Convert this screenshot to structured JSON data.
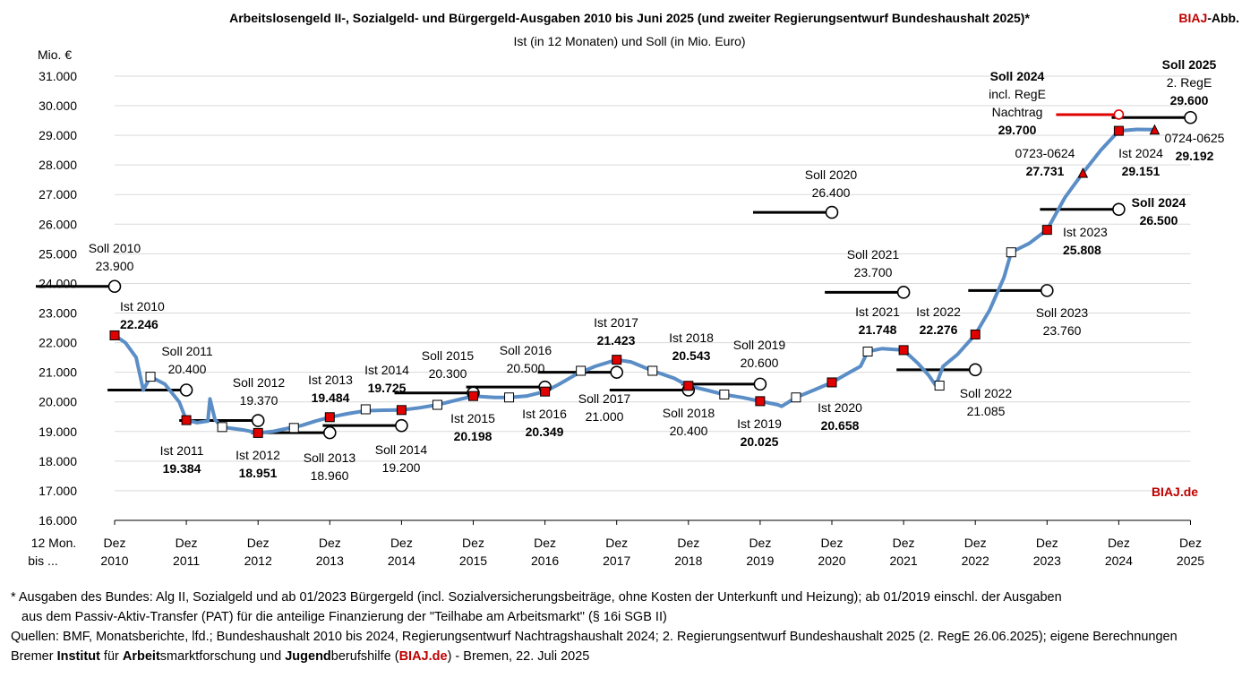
{
  "header": {
    "title": "Arbeitslosengeld II-, Sozialgeld- und Bürgergeld-Ausgaben 2010 bis Juni 2025 (und zweiter Regierungsentwurf Bundeshaushalt 2025)*",
    "subtitle": "Ist (in 12 Monaten) und Soll (in Mio. Euro)",
    "brand_red": "BIAJ",
    "brand_rest": "-Abb."
  },
  "chart_data": {
    "type": "line",
    "ylabel": "Mio. €",
    "xlabel_line1": "12 Mon.",
    "xlabel_line2": "bis ...",
    "ylim": [
      16000,
      31000
    ],
    "y_ticks": [
      "16.000",
      "17.000",
      "18.000",
      "19.000",
      "20.000",
      "21.000",
      "22.000",
      "23.000",
      "24.000",
      "25.000",
      "26.000",
      "27.000",
      "28.000",
      "29.000",
      "30.000",
      "31.000"
    ],
    "x_ticks": [
      {
        "top": "Dez",
        "bottom": "2010"
      },
      {
        "top": "Dez",
        "bottom": "2011"
      },
      {
        "top": "Dez",
        "bottom": "2012"
      },
      {
        "top": "Dez",
        "bottom": "2013"
      },
      {
        "top": "Dez",
        "bottom": "2014"
      },
      {
        "top": "Dez",
        "bottom": "2015"
      },
      {
        "top": "Dez",
        "bottom": "2016"
      },
      {
        "top": "Dez",
        "bottom": "2017"
      },
      {
        "top": "Dez",
        "bottom": "2018"
      },
      {
        "top": "Dez",
        "bottom": "2019"
      },
      {
        "top": "Dez",
        "bottom": "2020"
      },
      {
        "top": "Dez",
        "bottom": "2021"
      },
      {
        "top": "Dez",
        "bottom": "2022"
      },
      {
        "top": "Dez",
        "bottom": "2023"
      },
      {
        "top": "Dez",
        "bottom": "2024"
      },
      {
        "top": "Dez",
        "bottom": "2025"
      }
    ],
    "colors": {
      "ist_line": "#5b8ec6",
      "ist_marker": "#e00000",
      "soll": "#000000",
      "nachtrag": "#e00000",
      "brand": "#c00000"
    },
    "ist_series": [
      [
        2010.0,
        22246
      ],
      [
        2010.15,
        22000
      ],
      [
        2010.3,
        21500
      ],
      [
        2010.4,
        20400
      ],
      [
        2010.5,
        20850
      ],
      [
        2010.7,
        20600
      ],
      [
        2010.9,
        20000
      ],
      [
        2011.0,
        19384
      ],
      [
        2011.15,
        19300
      ],
      [
        2011.3,
        19350
      ],
      [
        2011.33,
        20100
      ],
      [
        2011.4,
        19400
      ],
      [
        2011.5,
        19150
      ],
      [
        2011.65,
        19100
      ],
      [
        2011.8,
        19050
      ],
      [
        2012.0,
        18951
      ],
      [
        2012.2,
        19000
      ],
      [
        2012.4,
        19100
      ],
      [
        2012.6,
        19200
      ],
      [
        2012.8,
        19350
      ],
      [
        2013.0,
        19484
      ],
      [
        2013.25,
        19600
      ],
      [
        2013.5,
        19700
      ],
      [
        2013.75,
        19720
      ],
      [
        2014.0,
        19725
      ],
      [
        2014.25,
        19800
      ],
      [
        2014.5,
        19900
      ],
      [
        2014.75,
        20050
      ],
      [
        2015.0,
        20198
      ],
      [
        2015.3,
        20150
      ],
      [
        2015.5,
        20150
      ],
      [
        2015.75,
        20200
      ],
      [
        2016.0,
        20349
      ],
      [
        2016.2,
        20600
      ],
      [
        2016.45,
        20950
      ],
      [
        2016.7,
        21200
      ],
      [
        2017.0,
        21423
      ],
      [
        2017.2,
        21350
      ],
      [
        2017.5,
        21050
      ],
      [
        2017.8,
        20800
      ],
      [
        2018.0,
        20543
      ],
      [
        2018.25,
        20400
      ],
      [
        2018.5,
        20250
      ],
      [
        2018.75,
        20150
      ],
      [
        2019.0,
        20025
      ],
      [
        2019.25,
        19900
      ],
      [
        2019.3,
        19850
      ],
      [
        2019.5,
        20150
      ],
      [
        2019.75,
        20400
      ],
      [
        2020.0,
        20658
      ],
      [
        2020.25,
        21000
      ],
      [
        2020.4,
        21200
      ],
      [
        2020.5,
        21700
      ],
      [
        2020.7,
        21800
      ],
      [
        2021.0,
        21748
      ],
      [
        2021.2,
        21300
      ],
      [
        2021.35,
        20900
      ],
      [
        2021.45,
        20550
      ],
      [
        2021.55,
        21200
      ],
      [
        2021.75,
        21600
      ],
      [
        2022.0,
        22276
      ],
      [
        2022.2,
        23100
      ],
      [
        2022.4,
        24200
      ],
      [
        2022.5,
        25050
      ],
      [
        2022.75,
        25350
      ],
      [
        2023.0,
        25808
      ],
      [
        2023.25,
        26900
      ],
      [
        2023.5,
        27731
      ],
      [
        2023.75,
        28500
      ],
      [
        2024.0,
        29151
      ],
      [
        2024.25,
        29200
      ],
      [
        2024.5,
        29192
      ]
    ],
    "ist_markers": [
      [
        2010.0,
        22246
      ],
      [
        2011.0,
        19384
      ],
      [
        2012.0,
        18951
      ],
      [
        2013.0,
        19484
      ],
      [
        2014.0,
        19725
      ],
      [
        2015.0,
        20198
      ],
      [
        2016.0,
        20349
      ],
      [
        2017.0,
        21423
      ],
      [
        2018.0,
        20543
      ],
      [
        2019.0,
        20025
      ],
      [
        2020.0,
        20658
      ],
      [
        2021.0,
        21748
      ],
      [
        2022.0,
        22276
      ],
      [
        2023.0,
        25808
      ],
      [
        2024.0,
        29151
      ]
    ],
    "midyear_markers": [
      [
        2010.5,
        20850
      ],
      [
        2011.5,
        19150
      ],
      [
        2012.5,
        19120
      ],
      [
        2013.5,
        19750
      ],
      [
        2014.5,
        19900
      ],
      [
        2015.5,
        20150
      ],
      [
        2016.5,
        21050
      ],
      [
        2017.5,
        21050
      ],
      [
        2018.5,
        20250
      ],
      [
        2019.5,
        20150
      ],
      [
        2020.5,
        21700
      ],
      [
        2021.5,
        20550
      ],
      [
        2022.5,
        25050
      ]
    ],
    "triangle_markers": [
      [
        2023.5,
        27731
      ],
      [
        2024.5,
        29192
      ]
    ],
    "soll_lines": [
      {
        "year": 2010,
        "value": 23900
      },
      {
        "year": 2011,
        "value": 20400
      },
      {
        "year": 2012,
        "value": 19370
      },
      {
        "year": 2013,
        "value": 18960
      },
      {
        "year": 2014,
        "value": 19200
      },
      {
        "year": 2015,
        "value": 20300
      },
      {
        "year": 2016,
        "value": 20500
      },
      {
        "year": 2017,
        "value": 21000
      },
      {
        "year": 2018,
        "value": 20400
      },
      {
        "year": 2019,
        "value": 20600
      },
      {
        "year": 2020,
        "value": 26400
      },
      {
        "year": 2021,
        "value": 23700
      },
      {
        "year": 2022,
        "value": 21085
      },
      {
        "year": 2023,
        "value": 23760
      },
      {
        "year": 2024,
        "value": 26500
      },
      {
        "year": 2025,
        "value": 29600
      }
    ],
    "nachtrag_line": {
      "year": 2024,
      "value": 29700
    },
    "labels": {
      "soll_2010": [
        "Soll 2010",
        "23.900"
      ],
      "ist_2010": [
        "Ist 2010",
        "22.246"
      ],
      "soll_2011": [
        "Soll 2011",
        "20.400"
      ],
      "ist_2011": [
        "Ist 2011",
        "19.384"
      ],
      "soll_2012": [
        "Soll 2012",
        "19.370"
      ],
      "ist_2012": [
        "Ist 2012",
        "18.951"
      ],
      "ist_2013": [
        "Ist 2013",
        "19.484"
      ],
      "soll_2013": [
        "Soll 2013",
        "18.960"
      ],
      "ist_2014": [
        "Ist 2014",
        "19.725"
      ],
      "soll_2014": [
        "Soll 2014",
        "19.200"
      ],
      "soll_2015": [
        "Soll 2015",
        "20.300"
      ],
      "ist_2015": [
        "Ist 2015",
        "20.198"
      ],
      "soll_2016": [
        "Soll 2016",
        "20.500"
      ],
      "ist_2016": [
        "Ist 2016",
        "20.349"
      ],
      "ist_2017": [
        "Ist 2017",
        "21.423"
      ],
      "soll_2017": [
        "Soll 2017",
        "21.000"
      ],
      "ist_2018": [
        "Ist 2018",
        "20.543"
      ],
      "soll_2018": [
        "Soll 2018",
        "20.400"
      ],
      "soll_2019": [
        "Soll 2019",
        "20.600"
      ],
      "ist_2019": [
        "Ist 2019",
        "20.025"
      ],
      "soll_2020": [
        "Soll 2020",
        "26.400"
      ],
      "ist_2020": [
        "Ist 2020",
        "20.658"
      ],
      "soll_2021": [
        "Soll 2021",
        "23.700"
      ],
      "ist_2021": [
        "Ist 2021",
        "21.748"
      ],
      "ist_2022": [
        "Ist 2022",
        "22.276"
      ],
      "soll_2022": [
        "Soll 2022",
        "21.085"
      ],
      "ist_2023": [
        "Ist 2023",
        "25.808"
      ],
      "soll_2023": [
        "Soll 2023",
        "23.760"
      ],
      "p0723": [
        "0723-0624",
        "27.731"
      ],
      "soll_2024": [
        "Soll 2024",
        "26.500"
      ],
      "soll_2024_nachtrag": [
        "Soll 2024",
        "incl. RegE",
        "Nachtrag",
        "29.700"
      ],
      "ist_2024": [
        "Ist 2024",
        "29.151"
      ],
      "soll_2025": [
        "Soll 2025",
        "2. RegE",
        "29.600"
      ],
      "p0724": [
        "0724-0625",
        "29.192"
      ]
    },
    "watermark": "BIAJ.de"
  },
  "footer": {
    "note1": "* Ausgaben des Bundes: Alg II, Sozialgeld und ab 01/2023 Bürgergeld (incl. Sozialversicherungsbeiträge, ohne Kosten der Unterkunft und Heizung); ab 01/2019 einschl. der Ausgaben",
    "note2": "aus dem Passiv-Aktiv-Transfer (PAT) für die anteilige Finanzierung der \"Teilhabe am Arbeitsmarkt\" (§ 16i SGB II)",
    "sources": "Quellen: BMF, Monatsberichte, lfd.; Bundeshaushalt 2010 bis 2024, Regierungsentwurf Nachtragshaushalt 2024; 2. Regierungsentwurf Bundeshaushalt 2025 (2. RegE 26.06.2025); eigene Berechnungen",
    "inst_1": "Bremer ",
    "inst_2": "Institut",
    "inst_3": " für ",
    "inst_4": "Arbeit",
    "inst_5": "smarktforschung und ",
    "inst_6": "Jugend",
    "inst_7": "berufshilfe (",
    "inst_8": "BIAJ.de",
    "inst_9": ") - Bremen, 22. Juli 2025"
  }
}
